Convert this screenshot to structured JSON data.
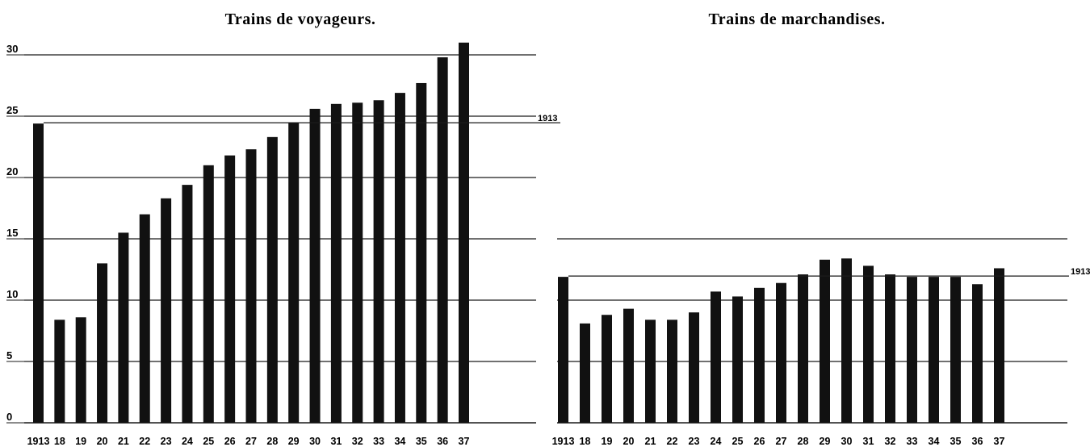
{
  "chart_data": [
    {
      "type": "bar",
      "title": "Trains de voyageurs.",
      "categories": [
        "1913",
        "18",
        "19",
        "20",
        "21",
        "22",
        "23",
        "24",
        "25",
        "26",
        "27",
        "28",
        "29",
        "30",
        "31",
        "32",
        "33",
        "34",
        "35",
        "36",
        "37"
      ],
      "values": [
        24.4,
        8.4,
        8.6,
        13.0,
        15.5,
        17.0,
        18.3,
        19.4,
        21.0,
        21.8,
        22.3,
        23.3,
        24.5,
        25.6,
        26.0,
        26.1,
        26.3,
        26.9,
        27.7,
        29.8,
        31.0
      ],
      "ylim": [
        0,
        31
      ],
      "yticks": [
        0,
        5,
        10,
        15,
        20,
        25,
        30
      ],
      "ytick_labels": [
        "0",
        "5",
        "10",
        "15",
        "20",
        "25",
        "30"
      ],
      "grid": true,
      "reference_line": {
        "value": 24.4,
        "label": "1913"
      },
      "bar_color": "#111111"
    },
    {
      "type": "bar",
      "title": "Trains de marchandises.",
      "categories": [
        "1913",
        "18",
        "19",
        "20",
        "21",
        "22",
        "23",
        "24",
        "25",
        "26",
        "27",
        "28",
        "29",
        "30",
        "31",
        "32",
        "33",
        "34",
        "35",
        "36",
        "37"
      ],
      "values": [
        11.9,
        8.1,
        8.8,
        9.3,
        8.4,
        8.4,
        9.0,
        10.7,
        10.3,
        11.0,
        11.4,
        12.1,
        13.3,
        13.4,
        12.8,
        12.1,
        11.9,
        11.9,
        11.9,
        11.3,
        12.6
      ],
      "ylim": [
        0,
        31
      ],
      "yticks": [
        0,
        5,
        10,
        15
      ],
      "grid": true,
      "reference_line": {
        "value": 11.9,
        "label": "1913"
      },
      "bar_color": "#111111"
    }
  ]
}
